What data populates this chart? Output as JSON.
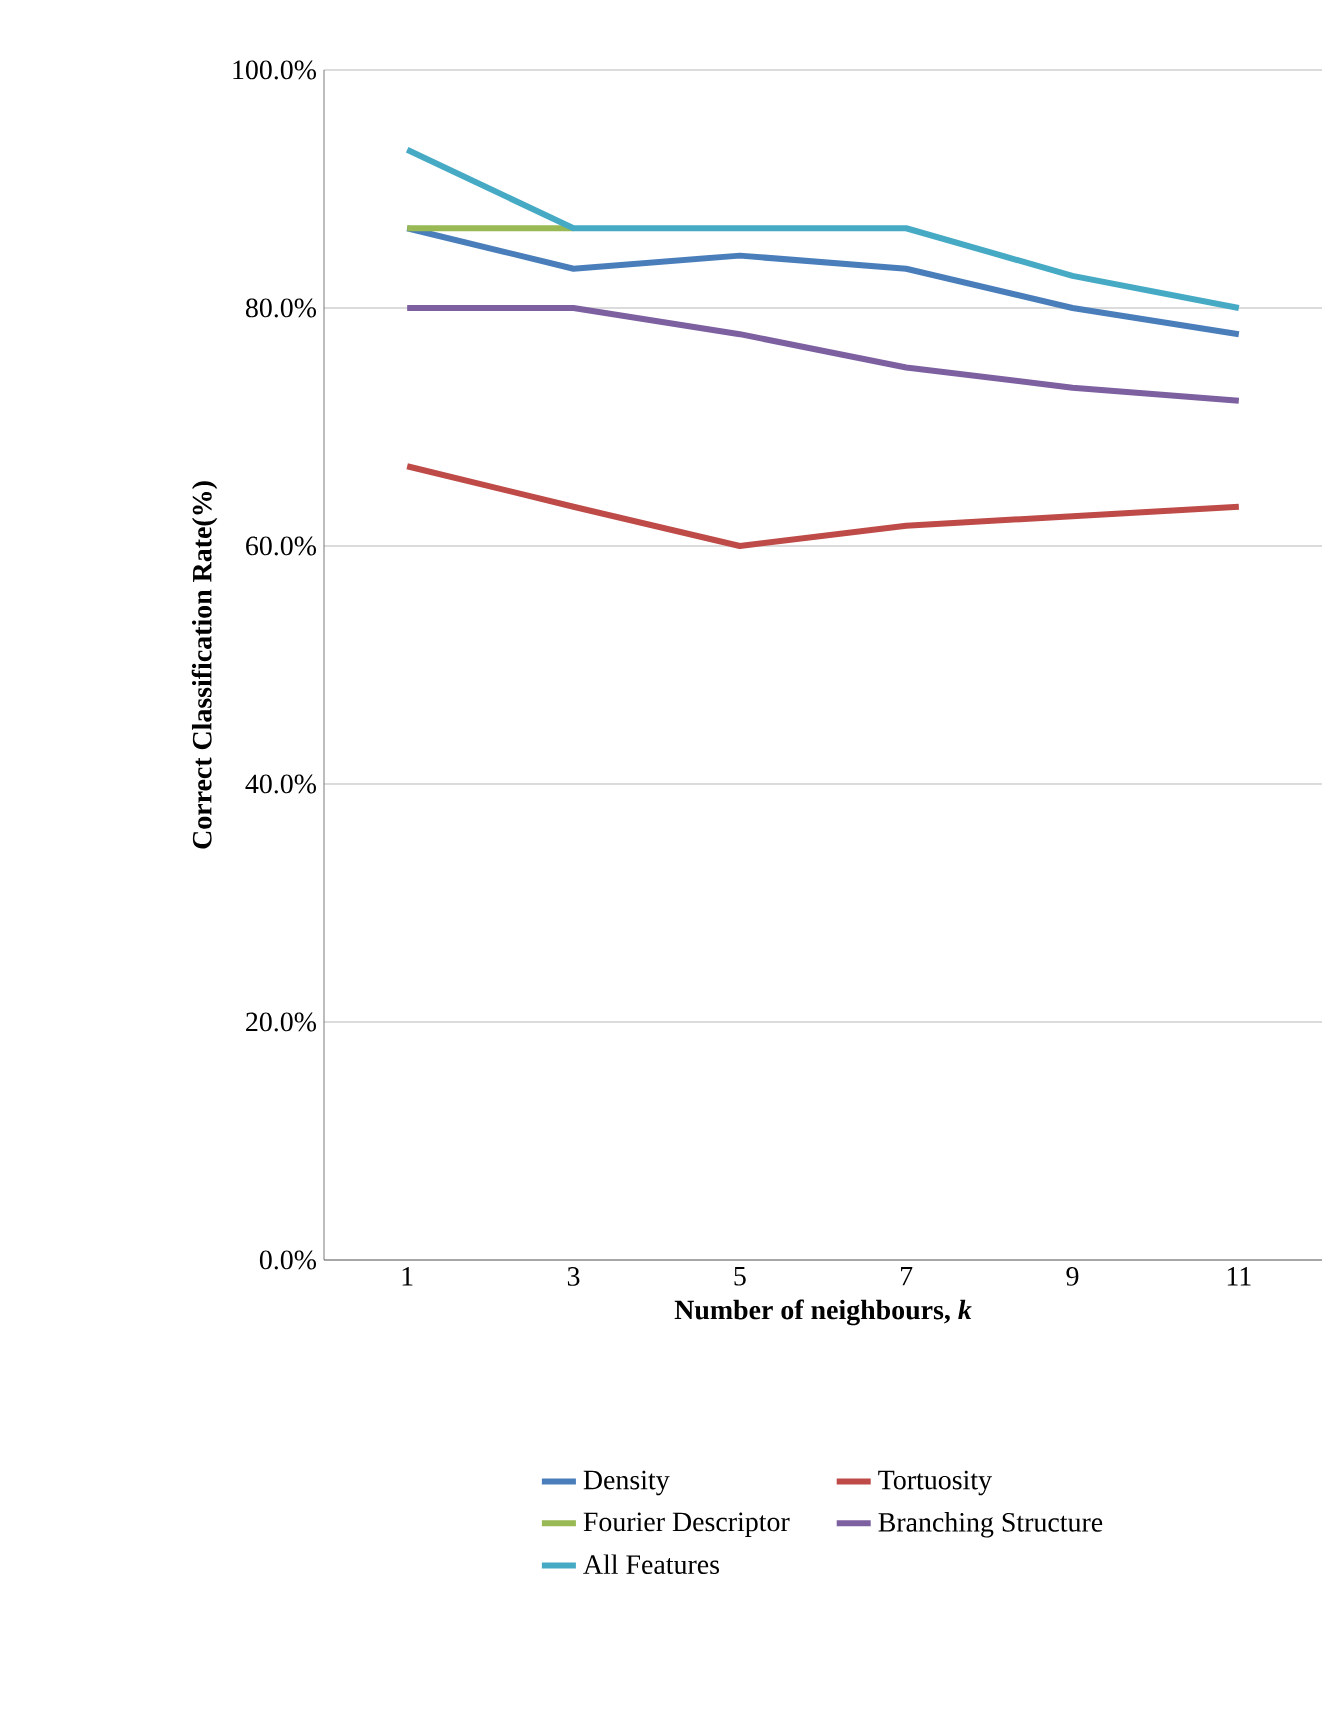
{
  "chart_data": {
    "type": "line",
    "xlabel": "Number of neighbours, *k*",
    "ylabel": "Correct Classification Rate(%)",
    "categories": [
      "1",
      "3",
      "5",
      "7",
      "9",
      "11"
    ],
    "series": [
      {
        "name": "Density",
        "color": "#4a7ebb",
        "values": [
          86.7,
          83.3,
          84.4,
          83.3,
          80.0,
          77.8
        ]
      },
      {
        "name": "Tortuosity",
        "color": "#be4b48",
        "values": [
          66.7,
          63.3,
          60.0,
          61.7,
          62.5,
          63.3
        ]
      },
      {
        "name": "Fourier Descriptor",
        "color": "#98b954",
        "values": [
          86.7,
          86.7,
          null,
          null,
          null,
          null
        ]
      },
      {
        "name": "Branching Structure",
        "color": "#7d60a0",
        "values": [
          80.0,
          80.0,
          77.8,
          75.0,
          73.3,
          72.2
        ]
      },
      {
        "name": "All Features",
        "color": "#46aac5",
        "values": [
          93.3,
          86.7,
          86.7,
          86.7,
          82.7,
          80.0
        ]
      }
    ],
    "ylim": [
      0,
      100
    ],
    "yticks": [
      {
        "value": 0,
        "label": "0.0%"
      },
      {
        "value": 20,
        "label": "20.0%"
      },
      {
        "value": 40,
        "label": "40.0%"
      },
      {
        "value": 60,
        "label": "60.0%"
      },
      {
        "value": 80,
        "label": "80.0%"
      },
      {
        "value": 100,
        "label": "100.0%"
      }
    ],
    "grid": "y",
    "legend": "bottom"
  }
}
